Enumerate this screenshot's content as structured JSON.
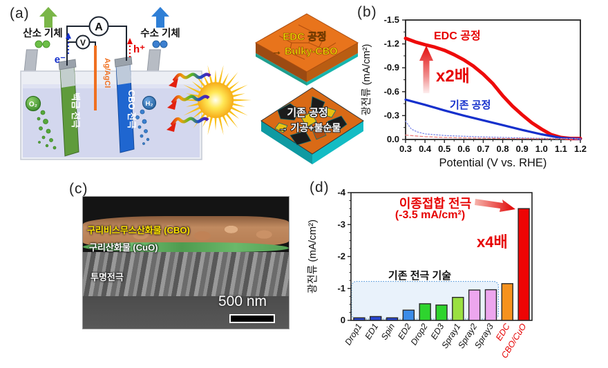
{
  "figure": {
    "panel_a": {
      "label": "(a)",
      "oxygen_gas": "산소 기체",
      "hydrogen_gas": "수소 기체",
      "ammeter": "A",
      "voltmeter": "V",
      "electron": "e⁻",
      "hole": "h⁺",
      "reference_electrode": "Ag/AgCl",
      "pt_electrode": "백금 전극",
      "cbo_electrode": "CBO 전극",
      "o2_bubble": "O₂",
      "h2_bubble": "H₂",
      "tile_edc_line1": "EDC 공정",
      "tile_edc_line2": "→ Bulky-CBO",
      "tile_conv_line1": "기존 공정",
      "tile_conv_line2": "→ 기공+불순물"
    },
    "panel_b": {
      "label": "(b)",
      "series_edc_label": "EDC 공정",
      "series_conv_label": "기존 공정",
      "multiplier": "x2배"
    },
    "panel_c": {
      "label": "(c)",
      "layer_cbo": "구리비스무스산화물 (CBO)",
      "layer_cuo": "구리산화물 (CuO)",
      "layer_te": "투명전극",
      "scale_bar": "500 nm"
    },
    "panel_d": {
      "label": "(d)",
      "annotation_line1": "이종접합 전극",
      "annotation_line2": "(-3.5 mA/cm²)",
      "multiplier": "x4배",
      "box_label": "기존 전극 기술"
    }
  },
  "colors": {
    "accent_red": "#e60000",
    "accent_blue": "#1530cc",
    "orange_bar": "#f6921e",
    "tile_orange": "#e8741c",
    "teal_edge": "#14bcc4"
  },
  "chart_data": [
    {
      "type": "line",
      "panel": "b",
      "xlabel": "Potential (V vs. RHE)",
      "ylabel": "광전류 (mA/cm²)",
      "xlim": [
        0.3,
        1.2
      ],
      "ylim": [
        0,
        -1.5
      ],
      "xticks": [
        "0.3",
        "0.4",
        "0.5",
        "0.6",
        "0.7",
        "0.8",
        "0.9",
        "1.0",
        "1.1",
        "1.2"
      ],
      "yticks": [
        "-1.5",
        "-1.2",
        "-0.9",
        "-0.6",
        "-0.3",
        "0.0"
      ],
      "grid": false,
      "legend_position": "inline-annotations",
      "series": [
        {
          "name": "EDC 공정",
          "color": "#ee0a0a",
          "width": 5,
          "dash": "",
          "x": [
            0.3,
            0.35,
            0.4,
            0.45,
            0.5,
            0.55,
            0.6,
            0.65,
            0.7,
            0.75,
            0.8,
            0.85,
            0.9,
            0.95,
            1.0,
            1.05,
            1.1,
            1.15,
            1.2
          ],
          "y": [
            -1.27,
            -1.225,
            -1.19,
            -1.16,
            -1.12,
            -1.065,
            -1.0,
            -0.92,
            -0.82,
            -0.7,
            -0.55,
            -0.42,
            -0.31,
            -0.21,
            -0.13,
            -0.06,
            -0.025,
            -0.012,
            -0.012
          ]
        },
        {
          "name": "기존 공정",
          "color": "#1530cc",
          "width": 3.2,
          "dash": "",
          "x": [
            0.3,
            0.4,
            0.5,
            0.6,
            0.7,
            0.8,
            0.9,
            1.0,
            1.1,
            1.2
          ],
          "y": [
            -0.5,
            -0.435,
            -0.365,
            -0.3,
            -0.24,
            -0.18,
            -0.12,
            -0.065,
            -0.02,
            -0.006
          ]
        },
        {
          "name": "",
          "color": "#7b86e8",
          "width": 1.3,
          "dash": "1.5 2.5",
          "x": [
            0.3,
            0.33,
            0.36,
            0.4,
            0.45,
            0.5,
            0.6,
            0.7,
            0.8,
            0.9,
            1.0,
            1.1,
            1.2
          ],
          "y": [
            -0.23,
            -0.13,
            -0.095,
            -0.07,
            -0.06,
            -0.05,
            -0.04,
            -0.032,
            -0.026,
            -0.02,
            -0.015,
            -0.012,
            -0.008
          ]
        },
        {
          "name": "",
          "color": "#ef7d7d",
          "width": 1.3,
          "dash": "4 3",
          "x": [
            0.3,
            0.4,
            0.5,
            0.6,
            0.7,
            0.8,
            0.9,
            1.0,
            1.1,
            1.2
          ],
          "y": [
            -0.055,
            -0.035,
            -0.025,
            -0.02,
            -0.016,
            -0.013,
            -0.011,
            -0.009,
            -0.007,
            -0.005
          ]
        }
      ]
    },
    {
      "type": "bar",
      "panel": "d",
      "ylabel": "광전류 (mA/cm²)",
      "ylim": [
        0,
        -4
      ],
      "yticks": [
        "0",
        "-1",
        "-2",
        "-3",
        "-4"
      ],
      "categories": [
        "Drop1",
        "ED1",
        "Spin",
        "ED2",
        "Drop2",
        "ED3",
        "Spray1",
        "Spray2",
        "Spray3",
        "EDC",
        "CBO/CuO"
      ],
      "values": [
        -0.08,
        -0.12,
        -0.08,
        -0.32,
        -0.52,
        -0.48,
        -0.72,
        -0.95,
        -0.96,
        -1.15,
        -3.5
      ],
      "colors": [
        "#2847d2",
        "#2847d2",
        "#2847d2",
        "#3b8ce8",
        "#2ed42e",
        "#2ed42e",
        "#9ae042",
        "#eda6ee",
        "#eda6ee",
        "#f6921e",
        "#ee0505"
      ],
      "label_colors": [
        "#111111",
        "#111111",
        "#111111",
        "#111111",
        "#111111",
        "#111111",
        "#111111",
        "#111111",
        "#111111",
        "#e60000",
        "#e60000"
      ],
      "box": {
        "from_index": 0,
        "to_index": 8,
        "level": -1.22
      }
    }
  ]
}
